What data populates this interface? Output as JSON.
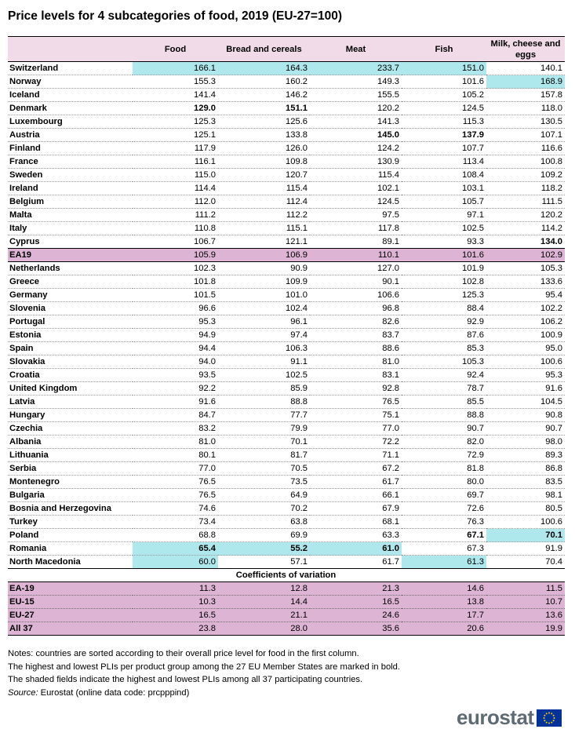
{
  "title": "Price levels for 4 subcategories of food, 2019 (EU-27=100)",
  "chart_data": {
    "type": "table",
    "columns": [
      "",
      "Food",
      "Bread and cereals",
      "Meat",
      "Fish",
      "Milk, cheese and eggs"
    ],
    "rows": [
      {
        "name": "Switzerland",
        "values": [
          "166.1",
          "164.3",
          "233.7",
          "151.0",
          "140.1"
        ],
        "bold": [],
        "highlight": [
          0,
          1,
          2,
          3
        ]
      },
      {
        "name": "Norway",
        "values": [
          "155.3",
          "160.2",
          "149.3",
          "101.6",
          "168.9"
        ],
        "bold": [],
        "highlight": [
          4
        ]
      },
      {
        "name": "Iceland",
        "values": [
          "141.4",
          "146.2",
          "155.5",
          "105.2",
          "157.8"
        ],
        "bold": [],
        "highlight": []
      },
      {
        "name": "Denmark",
        "values": [
          "129.0",
          "151.1",
          "120.2",
          "124.5",
          "118.0"
        ],
        "bold": [
          0,
          1
        ],
        "highlight": []
      },
      {
        "name": "Luxembourg",
        "values": [
          "125.3",
          "125.6",
          "141.3",
          "115.3",
          "130.5"
        ],
        "bold": [],
        "highlight": []
      },
      {
        "name": "Austria",
        "values": [
          "125.1",
          "133.8",
          "145.0",
          "137.9",
          "107.1"
        ],
        "bold": [
          2,
          3
        ],
        "highlight": []
      },
      {
        "name": "Finland",
        "values": [
          "117.9",
          "126.0",
          "124.2",
          "107.7",
          "116.6"
        ],
        "bold": [],
        "highlight": []
      },
      {
        "name": "France",
        "values": [
          "116.1",
          "109.8",
          "130.9",
          "113.4",
          "100.8"
        ],
        "bold": [],
        "highlight": []
      },
      {
        "name": "Sweden",
        "values": [
          "115.0",
          "120.7",
          "115.4",
          "108.4",
          "109.2"
        ],
        "bold": [],
        "highlight": []
      },
      {
        "name": "Ireland",
        "values": [
          "114.4",
          "115.4",
          "102.1",
          "103.1",
          "118.2"
        ],
        "bold": [],
        "highlight": []
      },
      {
        "name": "Belgium",
        "values": [
          "112.0",
          "112.4",
          "124.5",
          "105.7",
          "111.5"
        ],
        "bold": [],
        "highlight": []
      },
      {
        "name": "Malta",
        "values": [
          "111.2",
          "112.2",
          "97.5",
          "97.1",
          "120.2"
        ],
        "bold": [],
        "highlight": []
      },
      {
        "name": "Italy",
        "values": [
          "110.8",
          "115.1",
          "117.8",
          "102.5",
          "114.2"
        ],
        "bold": [],
        "highlight": []
      },
      {
        "name": "Cyprus",
        "values": [
          "106.7",
          "121.1",
          "89.1",
          "93.3",
          "134.0"
        ],
        "bold": [
          4
        ],
        "highlight": []
      },
      {
        "name": "EA19",
        "values": [
          "105.9",
          "106.9",
          "110.1",
          "101.6",
          "102.9"
        ],
        "bold": [],
        "highlight": [],
        "aggregate": true
      },
      {
        "name": "Netherlands",
        "values": [
          "102.3",
          "90.9",
          "127.0",
          "101.9",
          "105.3"
        ],
        "bold": [],
        "highlight": []
      },
      {
        "name": "Greece",
        "values": [
          "101.8",
          "109.9",
          "90.1",
          "102.8",
          "133.6"
        ],
        "bold": [],
        "highlight": []
      },
      {
        "name": "Germany",
        "values": [
          "101.5",
          "101.0",
          "106.6",
          "125.3",
          "95.4"
        ],
        "bold": [],
        "highlight": []
      },
      {
        "name": "Slovenia",
        "values": [
          "96.6",
          "102.4",
          "96.8",
          "88.4",
          "102.2"
        ],
        "bold": [],
        "highlight": []
      },
      {
        "name": "Portugal",
        "values": [
          "95.3",
          "96.1",
          "82.6",
          "92.9",
          "106.2"
        ],
        "bold": [],
        "highlight": []
      },
      {
        "name": "Estonia",
        "values": [
          "94.9",
          "97.4",
          "83.7",
          "87.6",
          "100.9"
        ],
        "bold": [],
        "highlight": []
      },
      {
        "name": "Spain",
        "values": [
          "94.4",
          "106.3",
          "88.6",
          "85.3",
          "95.0"
        ],
        "bold": [],
        "highlight": []
      },
      {
        "name": "Slovakia",
        "values": [
          "94.0",
          "91.1",
          "81.0",
          "105.3",
          "100.6"
        ],
        "bold": [],
        "highlight": []
      },
      {
        "name": "Croatia",
        "values": [
          "93.5",
          "102.5",
          "83.1",
          "92.4",
          "95.3"
        ],
        "bold": [],
        "highlight": []
      },
      {
        "name": "United Kingdom",
        "values": [
          "92.2",
          "85.9",
          "92.8",
          "78.7",
          "91.6"
        ],
        "bold": [],
        "highlight": []
      },
      {
        "name": "Latvia",
        "values": [
          "91.6",
          "88.8",
          "76.5",
          "85.5",
          "104.5"
        ],
        "bold": [],
        "highlight": []
      },
      {
        "name": "Hungary",
        "values": [
          "84.7",
          "77.7",
          "75.1",
          "88.8",
          "90.8"
        ],
        "bold": [],
        "highlight": []
      },
      {
        "name": "Czechia",
        "values": [
          "83.2",
          "79.9",
          "77.0",
          "90.7",
          "90.7"
        ],
        "bold": [],
        "highlight": []
      },
      {
        "name": "Albania",
        "values": [
          "81.0",
          "70.1",
          "72.2",
          "82.0",
          "98.0"
        ],
        "bold": [],
        "highlight": []
      },
      {
        "name": "Lithuania",
        "values": [
          "80.1",
          "81.7",
          "71.1",
          "72.9",
          "89.3"
        ],
        "bold": [],
        "highlight": []
      },
      {
        "name": "Serbia",
        "values": [
          "77.0",
          "70.5",
          "67.2",
          "81.8",
          "86.8"
        ],
        "bold": [],
        "highlight": []
      },
      {
        "name": "Montenegro",
        "values": [
          "76.5",
          "73.5",
          "61.7",
          "80.0",
          "83.5"
        ],
        "bold": [],
        "highlight": []
      },
      {
        "name": "Bulgaria",
        "values": [
          "76.5",
          "64.9",
          "66.1",
          "69.7",
          "98.1"
        ],
        "bold": [],
        "highlight": []
      },
      {
        "name": "Bosnia and Herzegovina",
        "values": [
          "74.6",
          "70.2",
          "67.9",
          "72.6",
          "80.5"
        ],
        "bold": [],
        "highlight": []
      },
      {
        "name": "Turkey",
        "values": [
          "73.4",
          "63.8",
          "68.1",
          "76.3",
          "100.6"
        ],
        "bold": [],
        "highlight": []
      },
      {
        "name": "Poland",
        "values": [
          "68.8",
          "69.9",
          "63.3",
          "67.1",
          "70.1"
        ],
        "bold": [
          3,
          4
        ],
        "highlight": [
          4
        ]
      },
      {
        "name": "Romania",
        "values": [
          "65.4",
          "55.2",
          "61.0",
          "67.3",
          "91.9"
        ],
        "bold": [
          0,
          1,
          2
        ],
        "highlight": [
          0,
          1,
          2
        ]
      },
      {
        "name": "North Macedonia",
        "values": [
          "60.0",
          "57.1",
          "61.7",
          "61.3",
          "70.4"
        ],
        "bold": [],
        "highlight": [
          0,
          3
        ],
        "last": true
      }
    ],
    "cv_title": "Coefficients of variation",
    "cv_rows": [
      {
        "name": "EA-19",
        "values": [
          "11.3",
          "12.8",
          "21.3",
          "14.6",
          "11.5"
        ]
      },
      {
        "name": "EU-15",
        "values": [
          "10.3",
          "14.4",
          "16.5",
          "13.8",
          "10.7"
        ]
      },
      {
        "name": "EU-27",
        "values": [
          "16.5",
          "21.1",
          "24.6",
          "17.7",
          "13.6"
        ]
      },
      {
        "name": "All 37",
        "values": [
          "23.8",
          "28.0",
          "35.6",
          "20.6",
          "19.9"
        ]
      }
    ]
  },
  "notes": {
    "line1": "Notes: countries are sorted according to their overall price level for food in the first column.",
    "line2": "The highest and lowest PLIs per product group among the 27 EU Member States are marked in bold.",
    "line3": "The shaded fields indicate the highest and lowest PLIs among all 37 participating countries.",
    "source_label": "Source:",
    "source_text": " Eurostat (online data code: prcpppind)"
  },
  "logo": {
    "text": "eurostat",
    "flag_color": "#003399",
    "star_color": "#ffcc00"
  },
  "colors": {
    "header_bg": "#f1dbe8",
    "aggregate_bg": "#ddb4d4",
    "highlight_bg": "#aee8ec"
  }
}
